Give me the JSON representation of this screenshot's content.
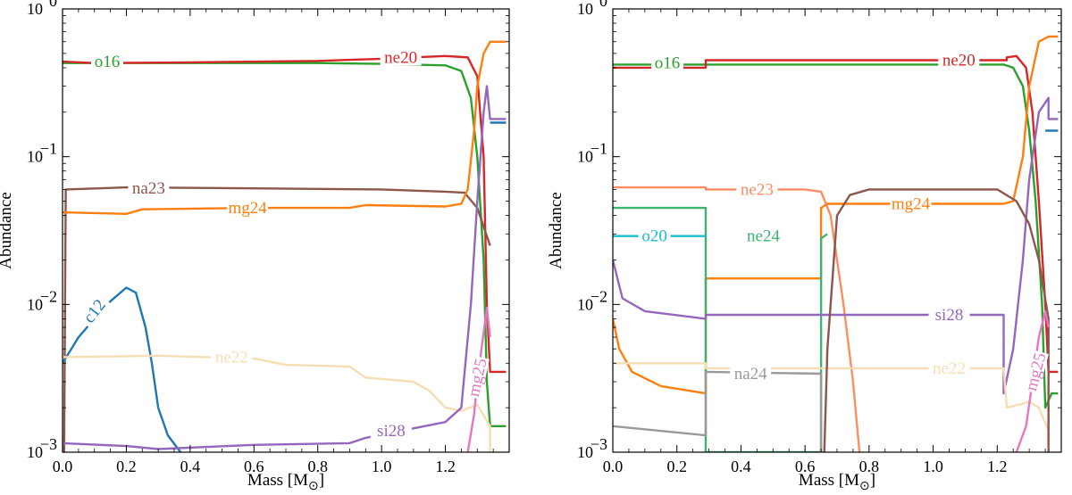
{
  "chart_data": [
    {
      "type": "line",
      "title": "",
      "xlabel": "Mass [M",
      "xlabel_sub": "⊙",
      "xlabel_close": "]",
      "ylabel": "Abundance",
      "xlim": [
        0,
        1.4
      ],
      "ylim": [
        0.001,
        1
      ],
      "yscale": "log",
      "xticks": [
        0.0,
        0.2,
        0.4,
        0.6,
        0.8,
        1.0,
        1.2
      ],
      "xtick_labels": [
        "0.0",
        "0.2",
        "0.4",
        "0.6",
        "0.8",
        "1.0",
        "1.2"
      ],
      "ytick_labels": [
        {
          "value": 1,
          "base": "10",
          "exp": "0"
        },
        {
          "value": 0.1,
          "base": "10",
          "exp": "−1"
        },
        {
          "value": 0.01,
          "base": "10",
          "exp": "−2"
        },
        {
          "value": 0.001,
          "base": "10",
          "exp": "−3"
        }
      ],
      "series": [
        {
          "name": "o16",
          "color": "#2ca02c",
          "points": [
            [
              0,
              0.43
            ],
            [
              0.2,
              0.43
            ],
            [
              0.4,
              0.43
            ],
            [
              0.8,
              0.43
            ],
            [
              1.0,
              0.425
            ],
            [
              1.2,
              0.415
            ],
            [
              1.25,
              0.38
            ],
            [
              1.28,
              0.25
            ],
            [
              1.3,
              0.1
            ],
            [
              1.32,
              0.02
            ],
            [
              1.33,
              0.003
            ],
            [
              1.34,
              0.0015
            ],
            [
              1.39,
              0.0015
            ]
          ],
          "label_at": 0.14,
          "label_y": 0.44
        },
        {
          "name": "ne20",
          "color": "#d62728",
          "points": [
            [
              0,
              0.44
            ],
            [
              0.1,
              0.43
            ],
            [
              0.4,
              0.435
            ],
            [
              0.8,
              0.445
            ],
            [
              1.0,
              0.46
            ],
            [
              1.1,
              0.47
            ],
            [
              1.2,
              0.48
            ],
            [
              1.27,
              0.47
            ],
            [
              1.3,
              0.35
            ],
            [
              1.32,
              0.1
            ],
            [
              1.33,
              0.01
            ],
            [
              1.34,
              0.0035
            ],
            [
              1.39,
              0.0035
            ]
          ],
          "label_at": 1.06,
          "label_y": 0.47
        },
        {
          "name": "na23",
          "color": "#8c564b",
          "points": [
            [
              0,
              0.001
            ],
            [
              0.005,
              0.001
            ],
            [
              0.01,
              0.06
            ],
            [
              0.2,
              0.062
            ],
            [
              0.6,
              0.061
            ],
            [
              1.0,
              0.06
            ],
            [
              1.2,
              0.058
            ],
            [
              1.26,
              0.057
            ],
            [
              1.3,
              0.045
            ],
            [
              1.34,
              0.025
            ]
          ],
          "label_at": 0.27,
          "label_y": 0.061
        },
        {
          "name": "mg24",
          "color": "#ff7f0e",
          "points": [
            [
              0,
              0.042
            ],
            [
              0.2,
              0.041
            ],
            [
              0.25,
              0.044
            ],
            [
              0.6,
              0.045
            ],
            [
              0.9,
              0.045
            ],
            [
              0.95,
              0.047
            ],
            [
              1.2,
              0.046
            ],
            [
              1.25,
              0.048
            ],
            [
              1.27,
              0.06
            ],
            [
              1.29,
              0.15
            ],
            [
              1.3,
              0.3
            ],
            [
              1.32,
              0.5
            ],
            [
              1.34,
              0.6
            ],
            [
              1.39,
              0.6
            ]
          ],
          "label_at": 0.58,
          "label_y": 0.045
        },
        {
          "name": "c12",
          "color": "#1f77b4",
          "points": [
            [
              0,
              0.004
            ],
            [
              0.05,
              0.006
            ],
            [
              0.1,
              0.008
            ],
            [
              0.15,
              0.0105
            ],
            [
              0.2,
              0.013
            ],
            [
              0.23,
              0.012
            ],
            [
              0.26,
              0.007
            ],
            [
              0.28,
              0.004
            ],
            [
              0.3,
              0.002
            ],
            [
              0.33,
              0.0013
            ],
            [
              0.37,
              0.001
            ]
          ],
          "label_at": 0.1,
          "label_y": 0.009,
          "label_rotate": -52
        },
        {
          "name": "ne22",
          "color": "#f5deb3",
          "points": [
            [
              0,
              0.0044
            ],
            [
              0.3,
              0.0045
            ],
            [
              0.6,
              0.0043
            ],
            [
              0.7,
              0.0039
            ],
            [
              0.9,
              0.0038
            ],
            [
              0.95,
              0.0032
            ],
            [
              1.1,
              0.003
            ],
            [
              1.15,
              0.0026
            ],
            [
              1.2,
              0.002
            ],
            [
              1.25,
              0.0019
            ],
            [
              1.3,
              0.0021
            ],
            [
              1.34,
              0.0015
            ],
            [
              1.34,
              0.001
            ]
          ],
          "label_at": 0.53,
          "label_y": 0.0044
        },
        {
          "name": "si28",
          "color": "#9467bd",
          "points": [
            [
              0,
              0.00115
            ],
            [
              0.2,
              0.0011
            ],
            [
              0.3,
              0.00105
            ],
            [
              0.6,
              0.00112
            ],
            [
              0.9,
              0.00115
            ],
            [
              0.95,
              0.00125
            ],
            [
              1.2,
              0.0016
            ],
            [
              1.25,
              0.002
            ],
            [
              1.28,
              0.01
            ],
            [
              1.3,
              0.05
            ],
            [
              1.32,
              0.2
            ],
            [
              1.33,
              0.3
            ],
            [
              1.34,
              0.18
            ],
            [
              1.39,
              0.18
            ]
          ],
          "label_at": 1.03,
          "label_y": 0.0014
        },
        {
          "name": "mg25",
          "color": "#e377c2",
          "points": [
            [
              1.27,
              0.001
            ],
            [
              1.29,
              0.0018
            ],
            [
              1.3,
              0.003
            ],
            [
              1.32,
              0.0065
            ],
            [
              1.33,
              0.0095
            ],
            [
              1.34,
              0.006
            ]
          ],
          "label_at": 1.3,
          "label_y": 0.0032,
          "label_rotate": -78
        },
        {
          "name": "",
          "color": "#1f77b4",
          "points": [
            [
              1.34,
              0.17
            ],
            [
              1.39,
              0.17
            ]
          ]
        }
      ]
    },
    {
      "type": "line",
      "title": "",
      "xlabel": "Mass [M",
      "xlabel_sub": "⊙",
      "xlabel_close": "]",
      "ylabel": "Abundance",
      "xlim": [
        0,
        1.4
      ],
      "ylim": [
        0.001,
        1
      ],
      "yscale": "log",
      "xticks": [
        0.0,
        0.2,
        0.4,
        0.6,
        0.8,
        1.0,
        1.2
      ],
      "xtick_labels": [
        "0.0",
        "0.2",
        "0.4",
        "0.6",
        "0.8",
        "1.0",
        "1.2"
      ],
      "ytick_labels": [
        {
          "value": 1,
          "base": "10",
          "exp": "0"
        },
        {
          "value": 0.1,
          "base": "10",
          "exp": "−1"
        },
        {
          "value": 0.01,
          "base": "10",
          "exp": "−2"
        },
        {
          "value": 0.001,
          "base": "10",
          "exp": "−3"
        }
      ],
      "series": [
        {
          "name": "o16",
          "color": "#2ca02c",
          "points": [
            [
              0,
              0.42
            ],
            [
              0.2,
              0.42
            ],
            [
              0.6,
              0.42
            ],
            [
              1.0,
              0.42
            ],
            [
              1.22,
              0.42
            ],
            [
              1.25,
              0.4
            ],
            [
              1.28,
              0.3
            ],
            [
              1.3,
              0.15
            ],
            [
              1.32,
              0.05
            ],
            [
              1.34,
              0.01
            ],
            [
              1.35,
              0.002
            ],
            [
              1.37,
              0.0025
            ],
            [
              1.39,
              0.0025
            ]
          ],
          "label_at": 0.17,
          "label_y": 0.43
        },
        {
          "name": "ne20",
          "color": "#d62728",
          "points": [
            [
              0,
              0.4
            ],
            [
              0.29,
              0.4
            ],
            [
              0.29,
              0.45
            ],
            [
              0.6,
              0.45
            ],
            [
              1.0,
              0.45
            ],
            [
              1.23,
              0.45
            ],
            [
              1.23,
              0.47
            ],
            [
              1.26,
              0.48
            ],
            [
              1.29,
              0.4
            ],
            [
              1.31,
              0.2
            ],
            [
              1.33,
              0.05
            ],
            [
              1.35,
              0.01
            ],
            [
              1.36,
              0.0035
            ],
            [
              1.39,
              0.0035
            ]
          ],
          "label_at": 1.08,
          "label_y": 0.45
        },
        {
          "name": "ne23",
          "color": "#fc8d62",
          "points": [
            [
              0,
              0.062
            ],
            [
              0.29,
              0.062
            ],
            [
              0.29,
              0.06
            ],
            [
              0.6,
              0.06
            ],
            [
              0.65,
              0.058
            ],
            [
              0.68,
              0.04
            ],
            [
              0.72,
              0.01
            ],
            [
              0.75,
              0.003
            ],
            [
              0.77,
              0.001
            ]
          ],
          "label_at": 0.45,
          "label_y": 0.06
        },
        {
          "name": "mg24",
          "color": "#ff7f0e",
          "points": [
            [
              0,
              0.008
            ],
            [
              0.02,
              0.005
            ],
            [
              0.06,
              0.0035
            ],
            [
              0.15,
              0.0028
            ],
            [
              0.29,
              0.0025
            ],
            [
              0.29,
              0.015
            ],
            [
              0.65,
              0.015
            ],
            [
              0.65,
              0.045
            ],
            [
              0.67,
              0.048
            ],
            [
              1.0,
              0.048
            ],
            [
              1.22,
              0.048
            ],
            [
              1.25,
              0.05
            ],
            [
              1.28,
              0.1
            ],
            [
              1.3,
              0.3
            ],
            [
              1.33,
              0.6
            ],
            [
              1.36,
              0.65
            ],
            [
              1.39,
              0.65
            ]
          ],
          "label_at": 0.93,
          "label_y": 0.048
        },
        {
          "name": "ne24",
          "color": "#3cb371",
          "points": [
            [
              0,
              0.045
            ],
            [
              0.29,
              0.045
            ],
            [
              0.29,
              0.001
            ],
            [
              0.65,
              0.001
            ],
            [
              0.65,
              0.028
            ],
            [
              0.67,
              0.03
            ]
          ],
          "label_at": 0.47,
          "label_y": 0.029
        },
        {
          "name": "o20",
          "color": "#17becf",
          "points": [
            [
              0,
              0.029
            ],
            [
              0.29,
              0.029
            ],
            [
              0.29,
              0.029
            ]
          ],
          "label_at": 0.13,
          "label_y": 0.029
        },
        {
          "name": "si28",
          "color": "#9467bd",
          "points": [
            [
              0,
              0.02
            ],
            [
              0.03,
              0.011
            ],
            [
              0.1,
              0.009
            ],
            [
              0.29,
              0.008
            ],
            [
              0.29,
              0.0085
            ],
            [
              0.6,
              0.0085
            ],
            [
              1.0,
              0.0085
            ],
            [
              1.22,
              0.0085
            ],
            [
              1.22,
              0.0025
            ],
            [
              1.25,
              0.005
            ],
            [
              1.28,
              0.02
            ],
            [
              1.3,
              0.07
            ],
            [
              1.33,
              0.2
            ],
            [
              1.36,
              0.25
            ],
            [
              1.36,
              0.18
            ],
            [
              1.39,
              0.18
            ]
          ],
          "label_at": 1.05,
          "label_y": 0.0085
        },
        {
          "name": "ne22",
          "color": "#f5deb3",
          "points": [
            [
              0,
              0.004
            ],
            [
              0.29,
              0.004
            ],
            [
              0.29,
              0.0037
            ],
            [
              0.6,
              0.0037
            ],
            [
              1.22,
              0.0037
            ],
            [
              1.23,
              0.002
            ],
            [
              1.27,
              0.0021
            ],
            [
              1.3,
              0.0022
            ],
            [
              1.33,
              0.002
            ],
            [
              1.36,
              0.0014
            ]
          ],
          "label_at": 1.05,
          "label_y": 0.0037
        },
        {
          "name": "na24",
          "color": "#999999",
          "points": [
            [
              0,
              0.0015
            ],
            [
              0.29,
              0.0013
            ],
            [
              0.29,
              0.0035
            ],
            [
              0.65,
              0.0034
            ],
            [
              0.65,
              0.001
            ]
          ],
          "label_at": 0.43,
          "label_y": 0.0034
        },
        {
          "name": "",
          "color": "#8c564b",
          "points": [
            [
              0.66,
              0.001
            ],
            [
              0.67,
              0.005
            ],
            [
              0.7,
              0.04
            ],
            [
              0.74,
              0.055
            ],
            [
              0.8,
              0.06
            ],
            [
              1.0,
              0.06
            ],
            [
              1.2,
              0.06
            ],
            [
              1.26,
              0.05
            ],
            [
              1.3,
              0.035
            ],
            [
              1.33,
              0.02
            ],
            [
              1.36,
              0.008
            ],
            [
              1.36,
              0.0008
            ]
          ]
        },
        {
          "name": "mg25",
          "color": "#e377c2",
          "points": [
            [
              1.26,
              0.001
            ],
            [
              1.29,
              0.0015
            ],
            [
              1.31,
              0.003
            ],
            [
              1.33,
              0.006
            ],
            [
              1.35,
              0.009
            ],
            [
              1.36,
              0.007
            ]
          ],
          "label_at": 1.32,
          "label_y": 0.0035,
          "label_rotate": -75
        },
        {
          "name": "",
          "color": "#1f77b4",
          "points": [
            [
              1.35,
              0.15
            ],
            [
              1.39,
              0.15
            ]
          ]
        }
      ]
    }
  ]
}
